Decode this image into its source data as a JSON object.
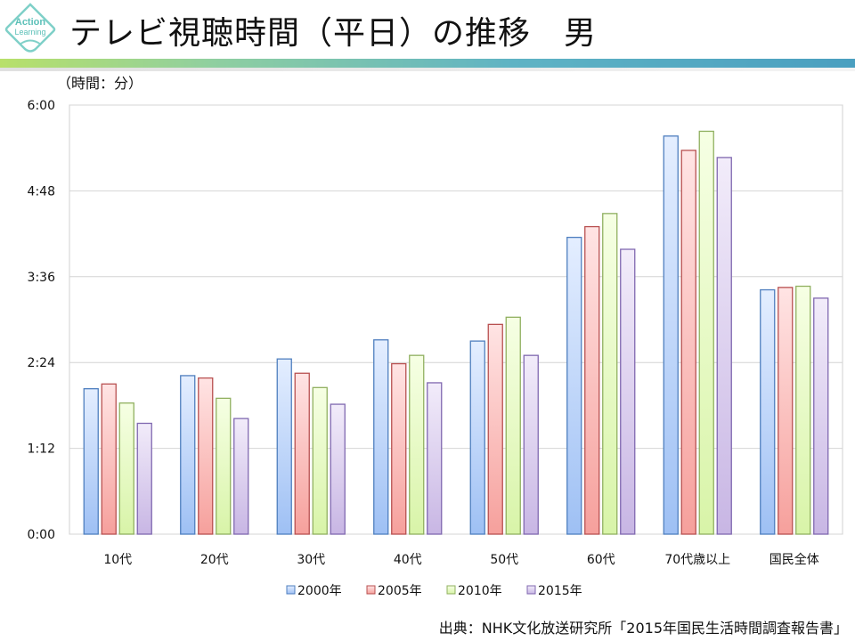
{
  "header": {
    "logo_text": "Action Learning",
    "title": "テレビ視聴時間（平日）の推移　男"
  },
  "unit_label": "（時間：分）",
  "source": "出典：NHK文化放送研究所「2015年国民生活時間調査報告書」",
  "colors": {
    "2000年": "#6f9fd8",
    "2005年": "#e07070",
    "2010年": "#a8c870",
    "2015年": "#9a86c8",
    "accent_bar": "#4a9fc0"
  },
  "chart_data": {
    "type": "bar",
    "categories": [
      "10代",
      "20代",
      "30代",
      "40代",
      "50代",
      "60代",
      "70代歳以上",
      "国民全体"
    ],
    "y_unit": "minutes",
    "ylim": [
      0,
      360
    ],
    "y_ticks": [
      0,
      72,
      144,
      216,
      288,
      360
    ],
    "y_tick_labels": [
      "0:00",
      "1:12",
      "2:24",
      "3:36",
      "4:48",
      "6:00"
    ],
    "grid": true,
    "legend_position": "bottom",
    "series": [
      {
        "name": "2000年",
        "values": [
          122,
          133,
          147,
          163,
          162,
          249,
          334,
          205
        ]
      },
      {
        "name": "2005年",
        "values": [
          126,
          131,
          135,
          143,
          176,
          258,
          322,
          207
        ]
      },
      {
        "name": "2010年",
        "values": [
          110,
          114,
          123,
          150,
          182,
          269,
          338,
          208
        ]
      },
      {
        "name": "2015年",
        "values": [
          93,
          97,
          109,
          127,
          150,
          239,
          316,
          198
        ]
      }
    ]
  }
}
